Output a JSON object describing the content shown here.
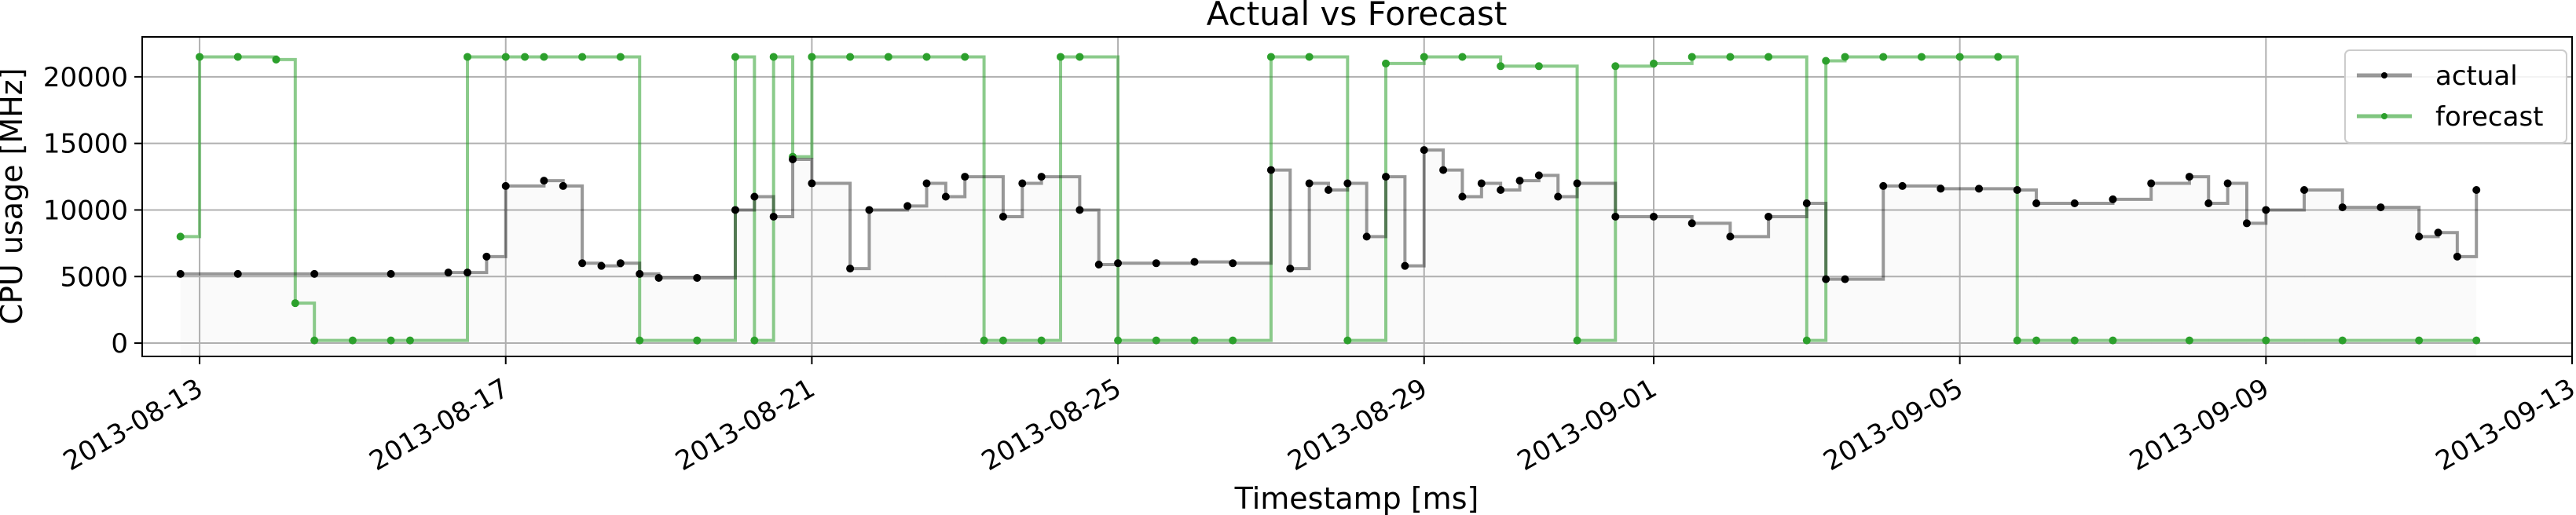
{
  "chart_data": {
    "type": "line",
    "title": "Actual vs Forecast",
    "xlabel": "Timestamp [ms]",
    "ylabel": "CPU usage [MHz]",
    "xlim": [
      "2013-08-12T06:00",
      "2013-09-13T00:00"
    ],
    "ylim": [
      -1000,
      23000
    ],
    "x_ticks": [
      "2013-08-13",
      "2013-08-17",
      "2013-08-21",
      "2013-08-25",
      "2013-08-29",
      "2013-09-01",
      "2013-09-05",
      "2013-09-09",
      "2013-09-13"
    ],
    "y_ticks": [
      0,
      5000,
      10000,
      15000,
      20000
    ],
    "y_tick_labels": [
      "0",
      "5000",
      "10000",
      "15000",
      "20000"
    ],
    "grid": true,
    "legend": {
      "placement": "top-right",
      "entries": [
        "actual",
        "forecast"
      ]
    },
    "colors": {
      "actual": "#000000",
      "forecast": "#2ca02c",
      "fill": "#999999"
    },
    "series": [
      {
        "name": "actual",
        "x": [
          "2013-08-12T18:00",
          "2013-08-13T12:00",
          "2013-08-14T12:00",
          "2013-08-15T12:00",
          "2013-08-16T06:00",
          "2013-08-16T12:00",
          "2013-08-16T18:00",
          "2013-08-17T00:00",
          "2013-08-17T12:00",
          "2013-08-17T18:00",
          "2013-08-18T00:00",
          "2013-08-18T06:00",
          "2013-08-18T12:00",
          "2013-08-18T18:00",
          "2013-08-19T00:00",
          "2013-08-19T12:00",
          "2013-08-20T00:00",
          "2013-08-20T06:00",
          "2013-08-20T12:00",
          "2013-08-20T18:00",
          "2013-08-21T00:00",
          "2013-08-21T12:00",
          "2013-08-21T18:00",
          "2013-08-22T06:00",
          "2013-08-22T12:00",
          "2013-08-22T18:00",
          "2013-08-23T00:00",
          "2013-08-23T12:00",
          "2013-08-23T18:00",
          "2013-08-24T00:00",
          "2013-08-24T12:00",
          "2013-08-24T18:00",
          "2013-08-25T00:00",
          "2013-08-25T12:00",
          "2013-08-26T00:00",
          "2013-08-26T12:00",
          "2013-08-27T00:00",
          "2013-08-27T06:00",
          "2013-08-27T12:00",
          "2013-08-27T18:00",
          "2013-08-28T00:00",
          "2013-08-28T06:00",
          "2013-08-28T12:00",
          "2013-08-28T18:00",
          "2013-08-29T00:00",
          "2013-08-29T06:00",
          "2013-08-29T12:00",
          "2013-08-29T18:00",
          "2013-08-30T00:00",
          "2013-08-30T06:00",
          "2013-08-30T12:00",
          "2013-08-30T18:00",
          "2013-08-31T00:00",
          "2013-08-31T12:00",
          "2013-09-01T00:00",
          "2013-09-01T12:00",
          "2013-09-02T00:00",
          "2013-09-02T12:00",
          "2013-09-03T00:00",
          "2013-09-03T06:00",
          "2013-09-03T12:00",
          "2013-09-04T00:00",
          "2013-09-04T06:00",
          "2013-09-04T18:00",
          "2013-09-05T06:00",
          "2013-09-05T18:00",
          "2013-09-06T00:00",
          "2013-09-06T12:00",
          "2013-09-07T00:00",
          "2013-09-07T12:00",
          "2013-09-08T00:00",
          "2013-09-08T06:00",
          "2013-09-08T12:00",
          "2013-09-08T18:00",
          "2013-09-09T00:00",
          "2013-09-09T12:00",
          "2013-09-10T00:00",
          "2013-09-10T12:00",
          "2013-09-11T00:00",
          "2013-09-11T06:00",
          "2013-09-11T12:00",
          "2013-09-11T18:00"
        ],
        "values": [
          5200,
          5200,
          5200,
          5200,
          5300,
          5300,
          6500,
          11800,
          12200,
          11800,
          6000,
          5800,
          6000,
          5200,
          4900,
          4900,
          10000,
          11000,
          9500,
          13800,
          12000,
          5600,
          10000,
          10300,
          12000,
          11000,
          12500,
          9500,
          12000,
          12500,
          10000,
          5900,
          6000,
          6000,
          6100,
          6000,
          13000,
          5600,
          12000,
          11500,
          12000,
          8000,
          12500,
          5800,
          14500,
          13000,
          11000,
          12000,
          11500,
          12200,
          12600,
          11000,
          12000,
          9500,
          9500,
          9000,
          8000,
          9500,
          10500,
          4800,
          4800,
          11800,
          11800,
          11600,
          11600,
          11500,
          10500,
          10500,
          10800,
          12000,
          12500,
          10500,
          12000,
          9000,
          10000,
          11500,
          10200,
          10200,
          8000,
          8300,
          6500,
          11500
        ]
      },
      {
        "name": "forecast",
        "x": [
          "2013-08-12T18:00",
          "2013-08-13T00:00",
          "2013-08-13T12:00",
          "2013-08-14T00:00",
          "2013-08-14T06:00",
          "2013-08-14T12:00",
          "2013-08-15T00:00",
          "2013-08-15T12:00",
          "2013-08-15T18:00",
          "2013-08-16T12:00",
          "2013-08-17T00:00",
          "2013-08-17T06:00",
          "2013-08-17T12:00",
          "2013-08-18T00:00",
          "2013-08-18T12:00",
          "2013-08-18T18:00",
          "2013-08-19T12:00",
          "2013-08-20T00:00",
          "2013-08-20T06:00",
          "2013-08-20T12:00",
          "2013-08-20T18:00",
          "2013-08-21T00:00",
          "2013-08-21T12:00",
          "2013-08-22T00:00",
          "2013-08-22T12:00",
          "2013-08-23T00:00",
          "2013-08-23T06:00",
          "2013-08-23T12:00",
          "2013-08-24T00:00",
          "2013-08-24T06:00",
          "2013-08-24T12:00",
          "2013-08-25T00:00",
          "2013-08-25T12:00",
          "2013-08-26T00:00",
          "2013-08-26T12:00",
          "2013-08-27T00:00",
          "2013-08-27T12:00",
          "2013-08-28T00:00",
          "2013-08-28T12:00",
          "2013-08-29T00:00",
          "2013-08-29T12:00",
          "2013-08-30T00:00",
          "2013-08-30T12:00",
          "2013-08-31T00:00",
          "2013-08-31T12:00",
          "2013-09-01T00:00",
          "2013-09-01T12:00",
          "2013-09-02T00:00",
          "2013-09-02T12:00",
          "2013-09-03T00:00",
          "2013-09-03T06:00",
          "2013-09-03T12:00",
          "2013-09-04T00:00",
          "2013-09-04T12:00",
          "2013-09-05T00:00",
          "2013-09-05T12:00",
          "2013-09-05T18:00",
          "2013-09-06T00:00",
          "2013-09-06T12:00",
          "2013-09-07T00:00",
          "2013-09-08T00:00",
          "2013-09-09T00:00",
          "2013-09-10T00:00",
          "2013-09-11T00:00",
          "2013-09-11T18:00"
        ],
        "values": [
          8000,
          21500,
          21500,
          21300,
          3000,
          200,
          200,
          200,
          200,
          21500,
          21500,
          21500,
          21500,
          21500,
          21500,
          200,
          200,
          21500,
          200,
          21500,
          14000,
          21500,
          21500,
          21500,
          21500,
          21500,
          200,
          200,
          200,
          21500,
          21500,
          200,
          200,
          200,
          200,
          21500,
          21500,
          200,
          21000,
          21500,
          21500,
          20800,
          20800,
          200,
          20800,
          21000,
          21500,
          21500,
          21500,
          200,
          21200,
          21500,
          21500,
          21500,
          21500,
          21500,
          200,
          200,
          200,
          200,
          200,
          200,
          200,
          200,
          200
        ]
      }
    ]
  }
}
